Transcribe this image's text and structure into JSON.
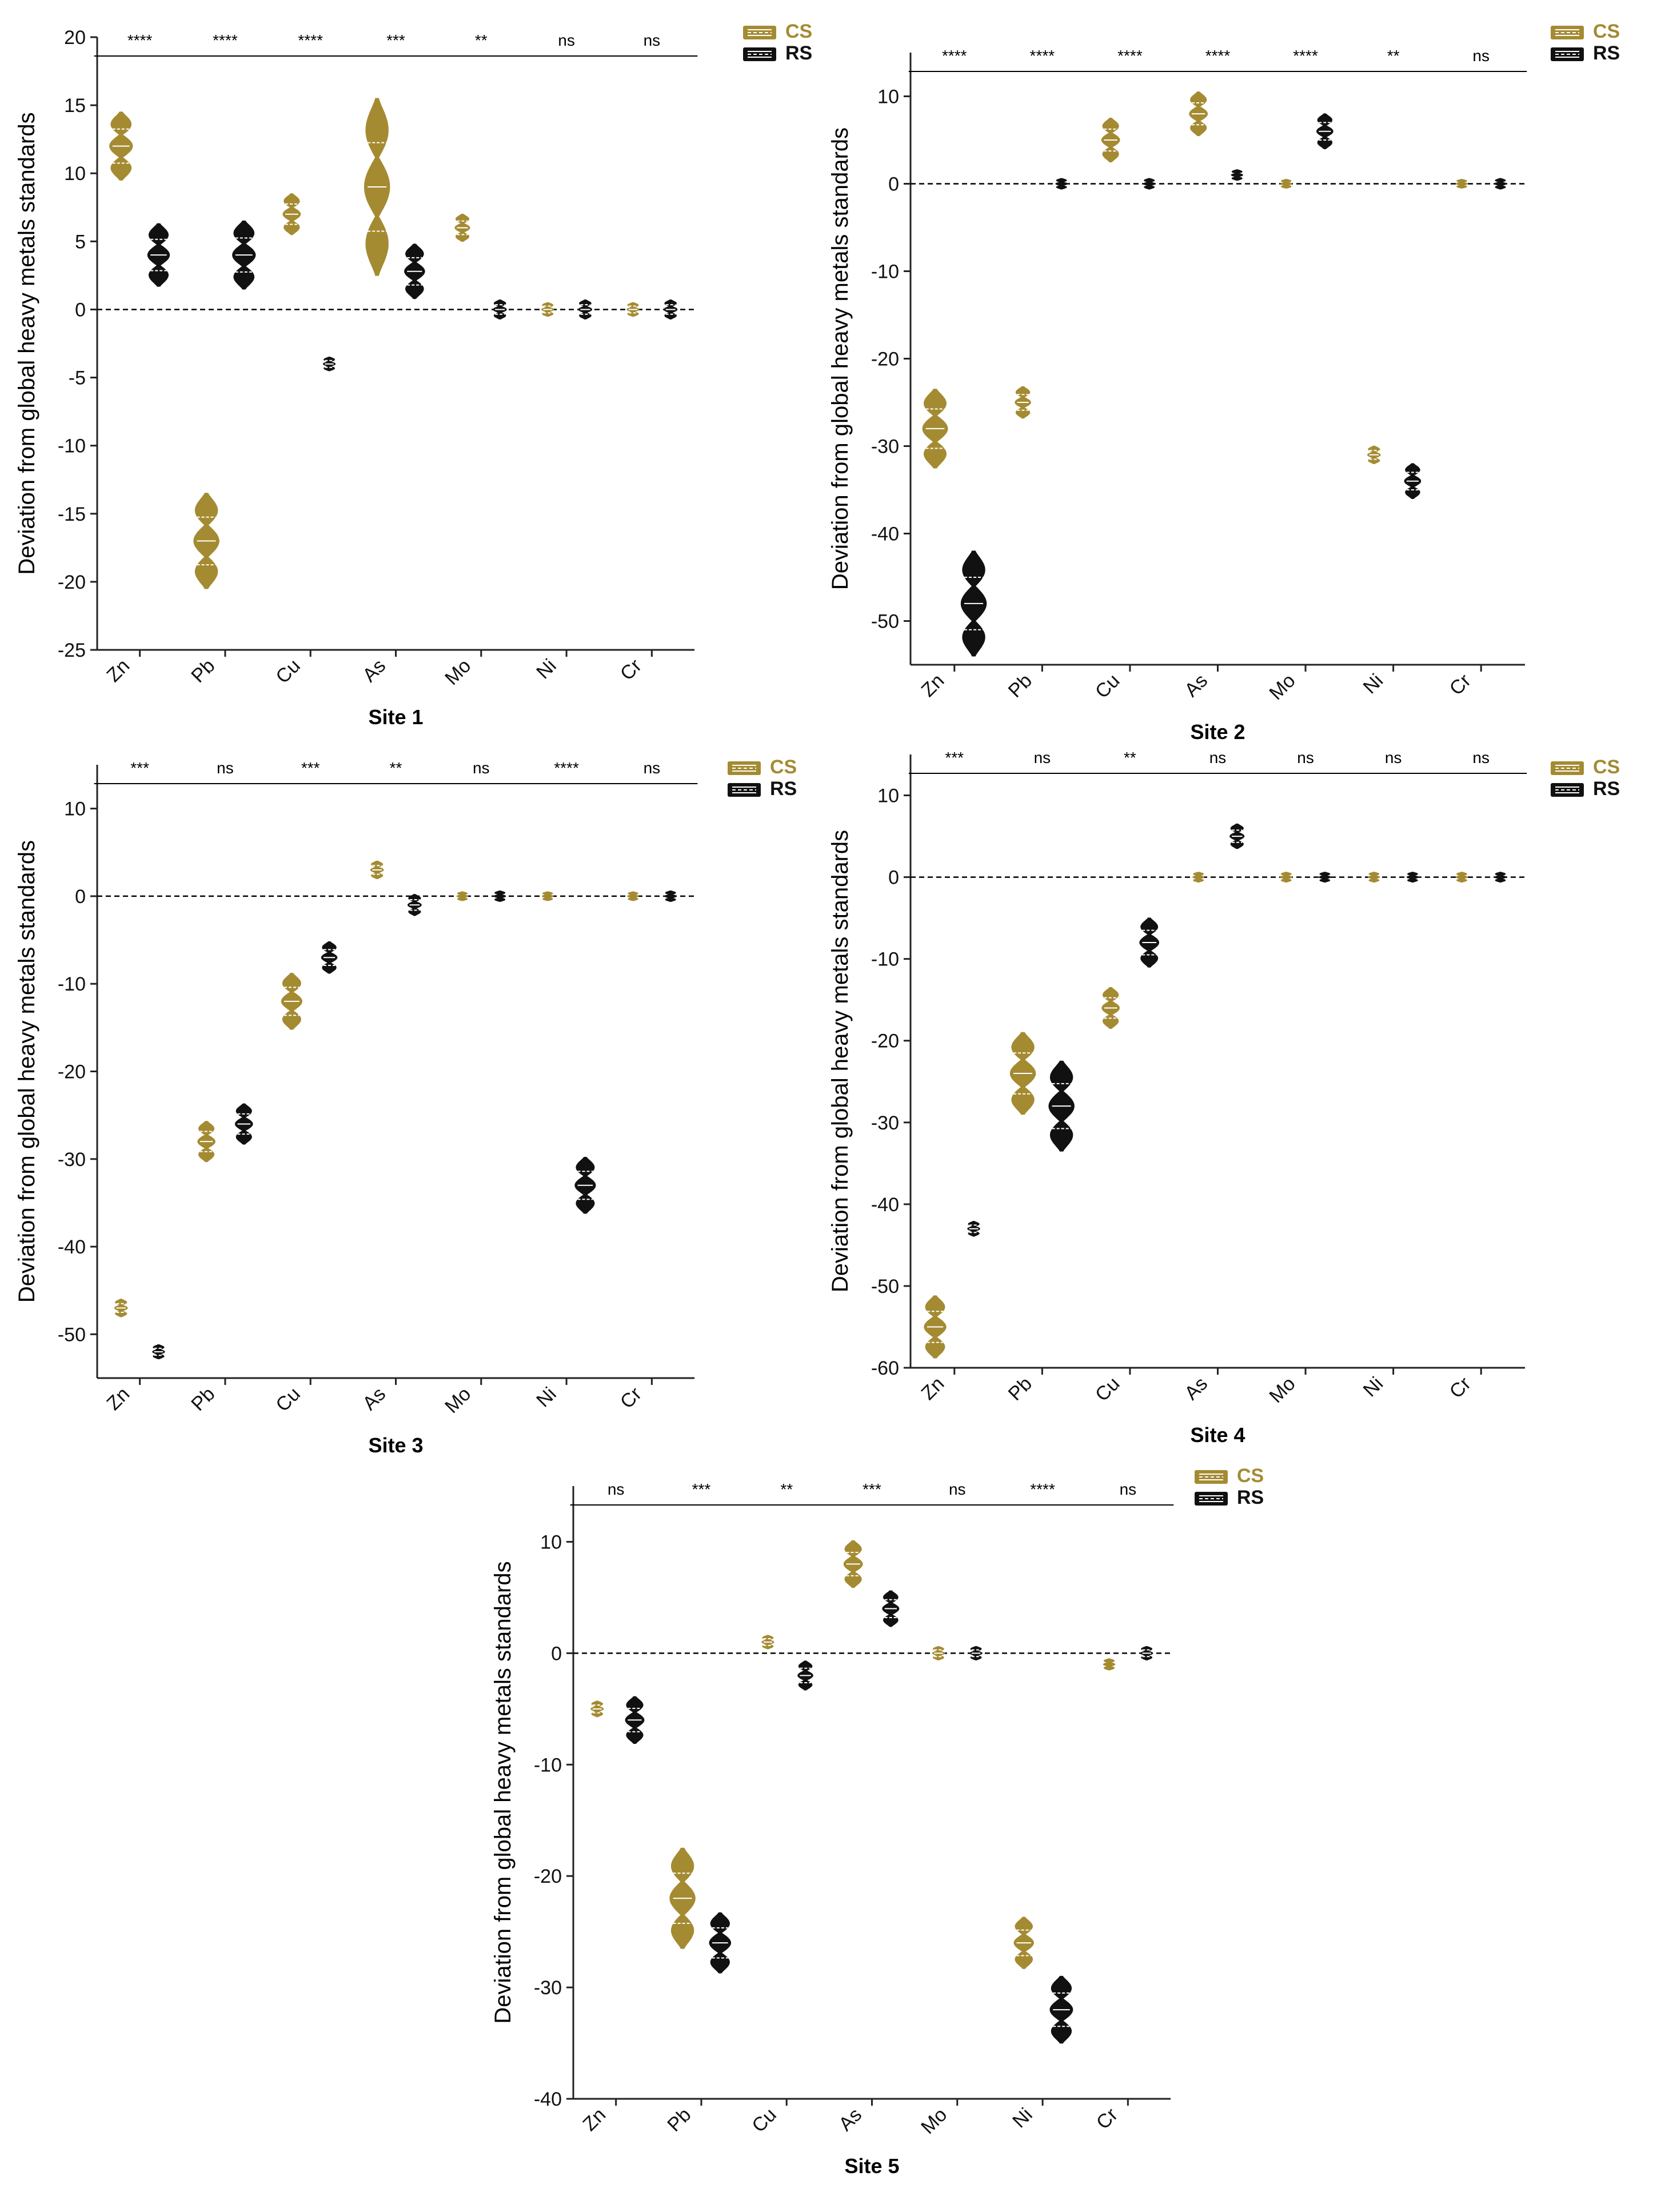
{
  "figure": {
    "ylabel": "Deviation from global heavy metals standards",
    "legend": [
      {
        "name": "CS",
        "color": "#a48b32"
      },
      {
        "name": "RS",
        "color": "#111111"
      }
    ],
    "colors": {
      "cs": "#a48b32",
      "rs": "#111111",
      "axis": "#222222",
      "inner": "#ffffff"
    }
  },
  "chart_data": [
    {
      "type": "violin",
      "title": "Site 1",
      "xlabel": "Site 1",
      "ylabel": "Deviation from global heavy metals standards",
      "categories": [
        "Zn",
        "Pb",
        "Cu",
        "As",
        "Mo",
        "Ni",
        "Cr"
      ],
      "ylim": [
        -25,
        20
      ],
      "yticks": [
        20,
        15,
        10,
        5,
        0,
        -5,
        -10,
        -15,
        -20,
        -25
      ],
      "significance": [
        "****",
        "****",
        "****",
        "***",
        "**",
        "ns",
        "ns"
      ],
      "legend_position": "top-right",
      "series": [
        {
          "name": "CS",
          "centers": [
            12,
            -17,
            7,
            9,
            6,
            0,
            0
          ],
          "spreads": [
            2.5,
            3.5,
            1.5,
            6.5,
            1,
            0.5,
            0.5
          ]
        },
        {
          "name": "RS",
          "centers": [
            4,
            4,
            -4,
            2.8,
            0,
            0,
            0
          ],
          "spreads": [
            2.3,
            2.5,
            0.5,
            2,
            0.7,
            0.7,
            0.7
          ]
        }
      ]
    },
    {
      "type": "violin",
      "title": "Site 2",
      "xlabel": "Site 2",
      "ylabel": "Deviation from global heavy metals standards",
      "categories": [
        "Zn",
        "Pb",
        "Cu",
        "As",
        "Mo",
        "Ni",
        "Cr"
      ],
      "ylim": [
        -55,
        15
      ],
      "yticks": [
        10,
        0,
        -10,
        -20,
        -30,
        -40,
        -50
      ],
      "significance": [
        "****",
        "****",
        "****",
        "****",
        "****",
        "**",
        "ns"
      ],
      "legend_position": "top-right",
      "series": [
        {
          "name": "CS",
          "centers": [
            -28,
            -25,
            5,
            8,
            0,
            -31,
            0
          ],
          "spreads": [
            4.5,
            1.8,
            2.5,
            2.5,
            0.5,
            1,
            0.5
          ]
        },
        {
          "name": "RS",
          "centers": [
            -48,
            0,
            0,
            1,
            6,
            -34,
            0
          ],
          "spreads": [
            6,
            0.6,
            0.6,
            0.6,
            2,
            2,
            0.6
          ]
        }
      ]
    },
    {
      "type": "violin",
      "title": "Site 3",
      "xlabel": "Site 3",
      "ylabel": "Deviation from global heavy metals standards",
      "categories": [
        "Zn",
        "Pb",
        "Cu",
        "As",
        "Mo",
        "Ni",
        "Cr"
      ],
      "ylim": [
        -55,
        15
      ],
      "yticks": [
        10,
        0,
        -10,
        -20,
        -30,
        -40,
        -50
      ],
      "significance": [
        "***",
        "ns",
        "***",
        "**",
        "ns",
        "****",
        "ns"
      ],
      "legend_position": "top-right",
      "series": [
        {
          "name": "CS",
          "centers": [
            -47,
            -28,
            -12,
            3,
            0,
            0,
            0
          ],
          "spreads": [
            1,
            2.3,
            3.2,
            1,
            0.5,
            0.5,
            0.5
          ]
        },
        {
          "name": "RS",
          "centers": [
            -52,
            -26,
            -7,
            -1,
            0,
            -33,
            0
          ],
          "spreads": [
            0.8,
            2.3,
            1.8,
            1.2,
            0.6,
            3.2,
            0.6
          ]
        }
      ]
    },
    {
      "type": "violin",
      "title": "Site 4",
      "xlabel": "Site 4",
      "ylabel": "Deviation from global heavy metals standards",
      "categories": [
        "Zn",
        "Pb",
        "Cu",
        "As",
        "Mo",
        "Ni",
        "Cr"
      ],
      "ylim": [
        -60,
        15
      ],
      "yticks": [
        10,
        0,
        -10,
        -20,
        -30,
        -40,
        -50,
        -60
      ],
      "significance": [
        "***",
        "ns",
        "**",
        "ns",
        "ns",
        "ns",
        "ns"
      ],
      "legend_position": "top-right",
      "series": [
        {
          "name": "CS",
          "centers": [
            -55,
            -24,
            -16,
            0,
            0,
            0,
            0
          ],
          "spreads": [
            3.8,
            5,
            2.5,
            0.6,
            0.6,
            0.6,
            0.6
          ]
        },
        {
          "name": "RS",
          "centers": [
            -43,
            -28,
            -8,
            5,
            0,
            0,
            0
          ],
          "spreads": [
            0.9,
            5.5,
            3,
            1.5,
            0.6,
            0.6,
            0.6
          ]
        }
      ]
    },
    {
      "type": "violin",
      "title": "Site 5",
      "xlabel": "Site 5",
      "ylabel": "Deviation from global heavy metals standards",
      "categories": [
        "Zn",
        "Pb",
        "Cu",
        "As",
        "Mo",
        "Ni",
        "Cr"
      ],
      "ylim": [
        -40,
        15
      ],
      "yticks": [
        10,
        0,
        -10,
        -20,
        -30,
        -40
      ],
      "significance": [
        "ns",
        "***",
        "**",
        "***",
        "ns",
        "****",
        "ns"
      ],
      "legend_position": "top-right",
      "series": [
        {
          "name": "CS",
          "centers": [
            -5,
            -22,
            1,
            8,
            0,
            -26,
            -1
          ],
          "spreads": [
            0.7,
            4.5,
            0.6,
            2.1,
            0.6,
            2.3,
            0.5
          ]
        },
        {
          "name": "RS",
          "centers": [
            -6,
            -26,
            -2,
            4,
            0,
            -32,
            0
          ],
          "spreads": [
            2.1,
            2.7,
            1.3,
            1.6,
            0.6,
            3,
            0.6
          ]
        }
      ]
    }
  ]
}
